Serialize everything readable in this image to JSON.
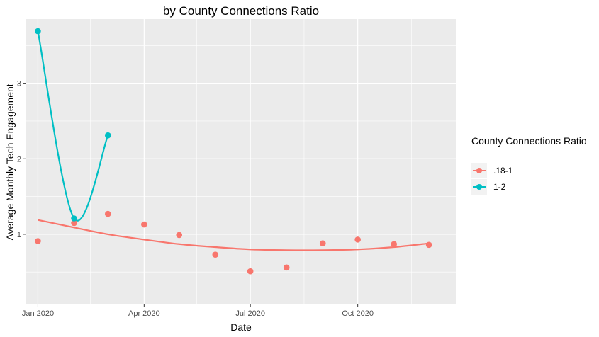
{
  "chart_data": {
    "type": "scatter",
    "title": "by County Connections Ratio",
    "xlabel": "Date",
    "ylabel": "Average Monthly Tech Engagement",
    "x_tick_labels": [
      "Jan 2020",
      "Apr 2020",
      "Jul 2020",
      "Oct 2020"
    ],
    "y_tick_labels": [
      "1",
      "2",
      "3"
    ],
    "xlim": [
      "2019-12-22",
      "2020-12-24"
    ],
    "ylim": [
      0.08,
      3.85
    ],
    "grid": true,
    "legend": {
      "title": "County Connections Ratio",
      "position": "right"
    },
    "series": [
      {
        "name": ".18-1",
        "color": "#F8766D",
        "x": [
          "2020-01-01",
          "2020-02-01",
          "2020-03-01",
          "2020-04-01",
          "2020-05-01",
          "2020-06-01",
          "2020-07-01",
          "2020-08-01",
          "2020-09-01",
          "2020-10-01",
          "2020-11-01",
          "2020-12-01"
        ],
        "y": [
          0.91,
          1.15,
          1.27,
          1.13,
          0.99,
          0.73,
          0.51,
          0.56,
          0.88,
          0.93,
          0.87,
          0.86
        ],
        "smooth_y": [
          1.19,
          1.09,
          1.0,
          0.93,
          0.87,
          0.83,
          0.8,
          0.79,
          0.79,
          0.8,
          0.83,
          0.88
        ]
      },
      {
        "name": "1-2",
        "color": "#00BFC4",
        "x": [
          "2020-01-01",
          "2020-02-01",
          "2020-03-01"
        ],
        "y": [
          3.69,
          1.21,
          2.31
        ],
        "smooth_y": [
          3.69,
          1.21,
          2.31
        ]
      }
    ]
  }
}
